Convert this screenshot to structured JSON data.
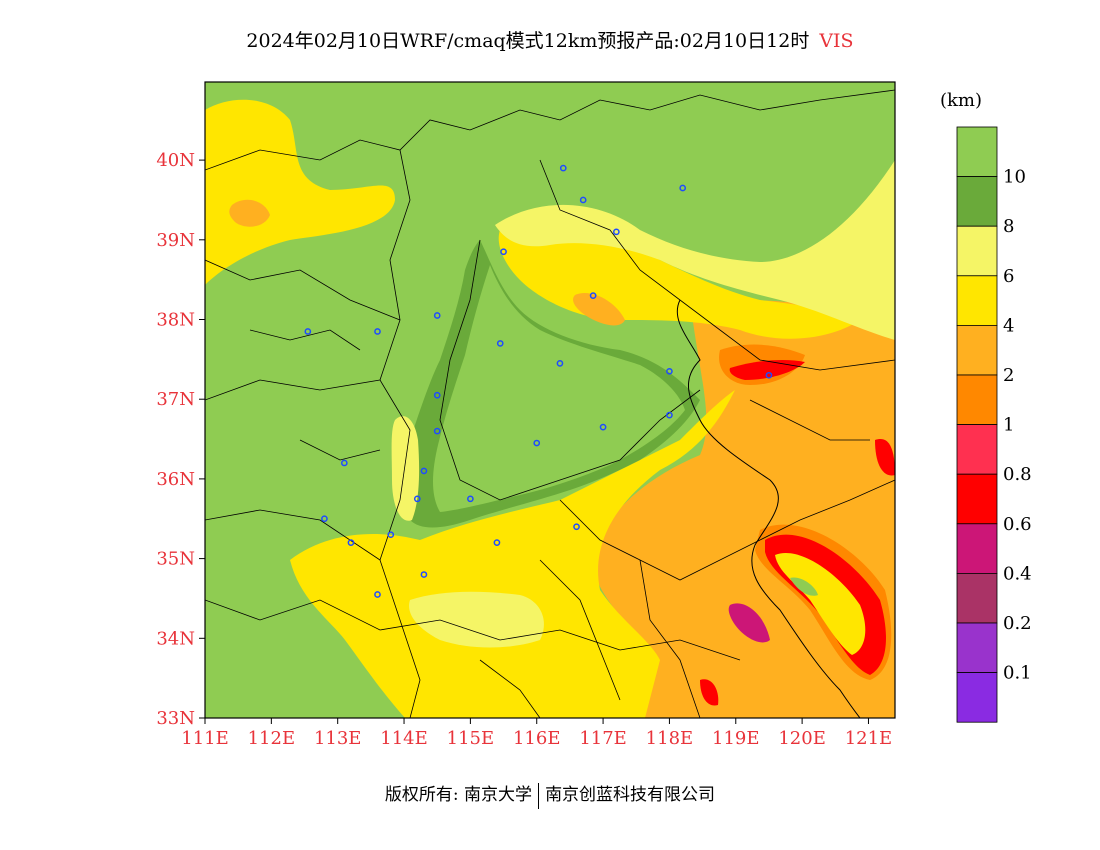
{
  "title": {
    "main": "2024年02月10日WRF/cmaq模式12km预报产品:02月10日12时",
    "variable": "VIS"
  },
  "colors": {
    "label_red": "#e8333a",
    "green_light": "#8fcc52",
    "green_dark": "#6aaa3a",
    "yellow_light": "#f5f566",
    "yellow": "#ffe600",
    "orange_light": "#ffb020",
    "orange": "#ff8800",
    "pink_red": "#ff3050",
    "red": "#ff0000",
    "magenta": "#cc1677",
    "maroon": "#aa3366",
    "purple": "#9933cc",
    "violet": "#8a2be2"
  },
  "map": {
    "lon_range": [
      111,
      121.4
    ],
    "lat_range": [
      33,
      40.98
    ],
    "lat_ticks": [
      "33N",
      "34N",
      "35N",
      "36N",
      "37N",
      "38N",
      "39N",
      "40N"
    ],
    "lon_ticks": [
      "111E",
      "112E",
      "113E",
      "114E",
      "115E",
      "116E",
      "117E",
      "118E",
      "119E",
      "120E",
      "121E"
    ],
    "stations": [
      [
        116.4,
        39.9
      ],
      [
        116.7,
        39.5
      ],
      [
        117.2,
        39.1
      ],
      [
        118.2,
        39.65
      ],
      [
        115.5,
        38.85
      ],
      [
        116.85,
        38.3
      ],
      [
        112.55,
        37.85
      ],
      [
        113.6,
        37.85
      ],
      [
        114.5,
        38.05
      ],
      [
        115.45,
        37.7
      ],
      [
        116.35,
        37.45
      ],
      [
        118.0,
        37.35
      ],
      [
        114.5,
        37.05
      ],
      [
        114.5,
        36.6
      ],
      [
        116.0,
        36.45
      ],
      [
        117.0,
        36.65
      ],
      [
        118.0,
        36.8
      ],
      [
        113.1,
        36.2
      ],
      [
        114.3,
        36.1
      ],
      [
        114.2,
        35.75
      ],
      [
        115.0,
        35.75
      ],
      [
        112.8,
        35.5
      ],
      [
        113.2,
        35.2
      ],
      [
        113.8,
        35.3
      ],
      [
        115.4,
        35.2
      ],
      [
        116.6,
        35.4
      ],
      [
        114.3,
        34.8
      ],
      [
        113.6,
        34.55
      ],
      [
        119.5,
        37.3
      ]
    ]
  },
  "colorbar": {
    "unit": "(km)",
    "labels": [
      "10",
      "8",
      "6",
      "4",
      "2",
      "1",
      "0.8",
      "0.6",
      "0.4",
      "0.2",
      "0.1"
    ]
  },
  "footer": {
    "left": "版权所有: 南京大学",
    "right": "南京创蓝科技有限公司"
  }
}
